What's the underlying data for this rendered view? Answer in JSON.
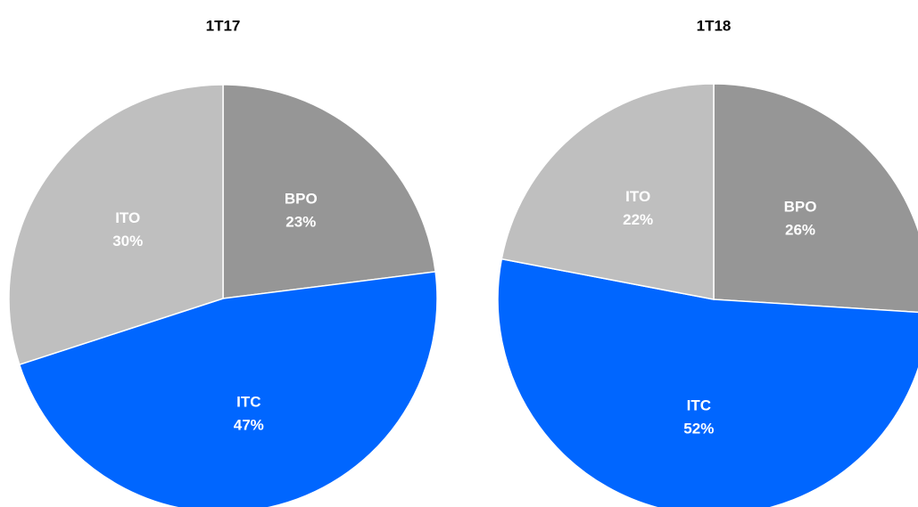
{
  "chart_data": [
    {
      "type": "pie",
      "title": "1T17",
      "categories": [
        "BPO",
        "ITC",
        "ITO"
      ],
      "values": [
        23,
        47,
        30
      ],
      "value_labels": [
        "23%",
        "47%",
        "30%"
      ],
      "colors": [
        "#969696",
        "#0066ff",
        "#bfbfbf"
      ]
    },
    {
      "type": "pie",
      "title": "1T18",
      "categories": [
        "BPO",
        "ITC",
        "ITO"
      ],
      "values": [
        26,
        52,
        22
      ],
      "value_labels": [
        "26%",
        "52%",
        "22%"
      ],
      "colors": [
        "#969696",
        "#0066ff",
        "#bfbfbf"
      ]
    }
  ]
}
